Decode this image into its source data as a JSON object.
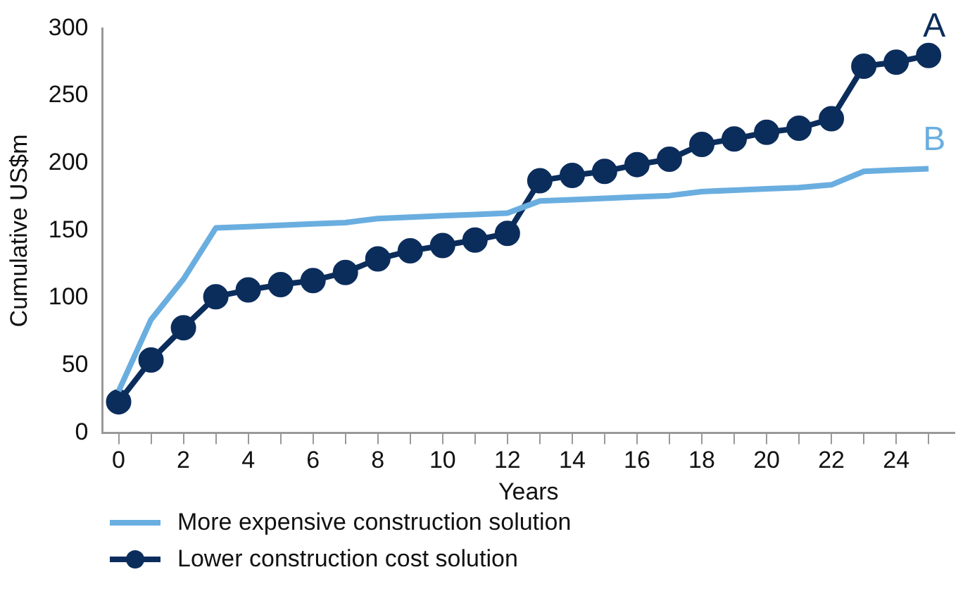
{
  "chart_data": {
    "type": "line",
    "xlabel": "Years",
    "ylabel": "Cumulative US$m",
    "xlim": [
      -0.5,
      25.8
    ],
    "ylim": [
      0,
      300
    ],
    "xticks": [
      0,
      {
        "value": 1,
        "label": null
      },
      2,
      {
        "value": 3,
        "label": null
      },
      4,
      {
        "value": 5,
        "label": null
      },
      6,
      {
        "value": 7,
        "label": null
      },
      8,
      {
        "value": 9,
        "label": null
      },
      10,
      {
        "value": 11,
        "label": null
      },
      12,
      {
        "value": 13,
        "label": null
      },
      14,
      {
        "value": 15,
        "label": null
      },
      16,
      {
        "value": 17,
        "label": null
      },
      18,
      {
        "value": 19,
        "label": null
      },
      20,
      {
        "value": 21,
        "label": null
      },
      22,
      {
        "value": 23,
        "label": null
      },
      24,
      {
        "value": 25,
        "label": null
      }
    ],
    "yticks": [
      0,
      50,
      100,
      150,
      200,
      250,
      300
    ],
    "x": [
      0,
      1,
      2,
      3,
      4,
      5,
      6,
      7,
      8,
      9,
      10,
      11,
      12,
      13,
      14,
      15,
      16,
      17,
      18,
      19,
      20,
      21,
      22,
      23,
      24,
      25
    ],
    "grid": false,
    "legend": "bottom left",
    "series": [
      {
        "name": "More expensive construction solution",
        "color": "#6aaee0",
        "marker": "none",
        "values": [
          31,
          84,
          114,
          152,
          153,
          154,
          155,
          156,
          159,
          160,
          161,
          162,
          163,
          172,
          173,
          174,
          175,
          176,
          179,
          180,
          181,
          182,
          184,
          194,
          195,
          196
        ]
      },
      {
        "name": "Lower construction cost solution",
        "color": "#0b2d5c",
        "marker": "circle",
        "values": [
          23,
          54,
          78,
          101,
          106,
          110,
          113,
          119,
          129,
          135,
          139,
          143,
          148,
          187,
          191,
          194,
          199,
          203,
          214,
          218,
          223,
          226,
          233,
          272,
          275,
          280
        ]
      }
    ],
    "annotations": [
      {
        "text": "A",
        "x": 25,
        "y": 280
      },
      {
        "text": "B",
        "x": 25,
        "y": 196
      }
    ]
  }
}
